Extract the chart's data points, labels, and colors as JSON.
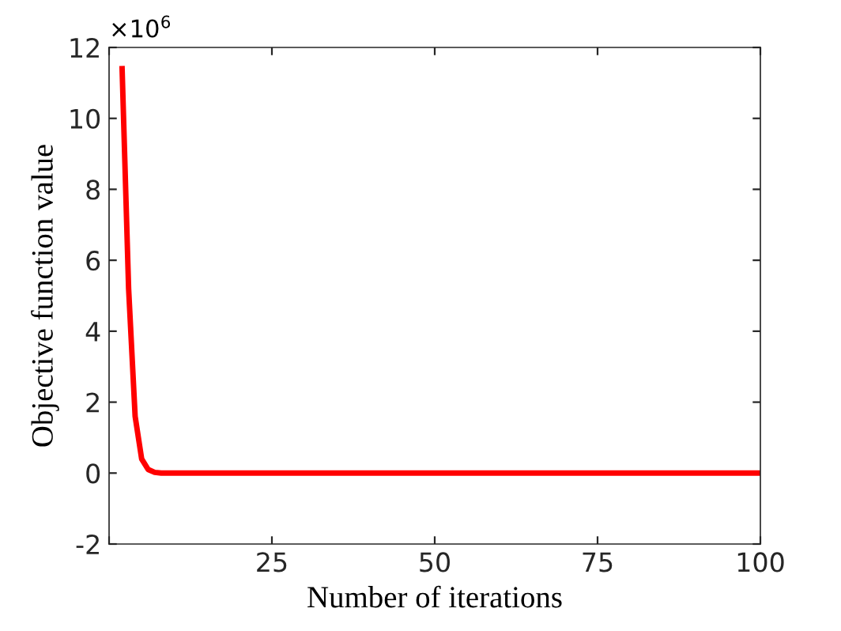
{
  "chart_data": {
    "type": "line",
    "xlabel": "Number of iterations",
    "ylabel": "Objective function value",
    "annotations": [
      "×10$^{6}$"
    ],
    "x": [
      2,
      3,
      4,
      5,
      6,
      7,
      8,
      10,
      100
    ],
    "series": [
      {
        "color": "#ff0000",
        "values": [
          11.4,
          5.2,
          1.6,
          0.4,
          0.1,
          0.02,
          0,
          0,
          0
        ]
      }
    ],
    "xlim": [
      0,
      100
    ],
    "xticks": [
      {
        "value": 0,
        "label": null
      },
      25,
      50,
      75,
      100
    ],
    "ylim": [
      -2,
      12
    ],
    "yticks": [
      -2,
      0,
      2,
      4,
      6,
      8,
      10,
      12
    ],
    "grid": false,
    "legend": false,
    "marker": "none",
    "line_style": "solid"
  }
}
